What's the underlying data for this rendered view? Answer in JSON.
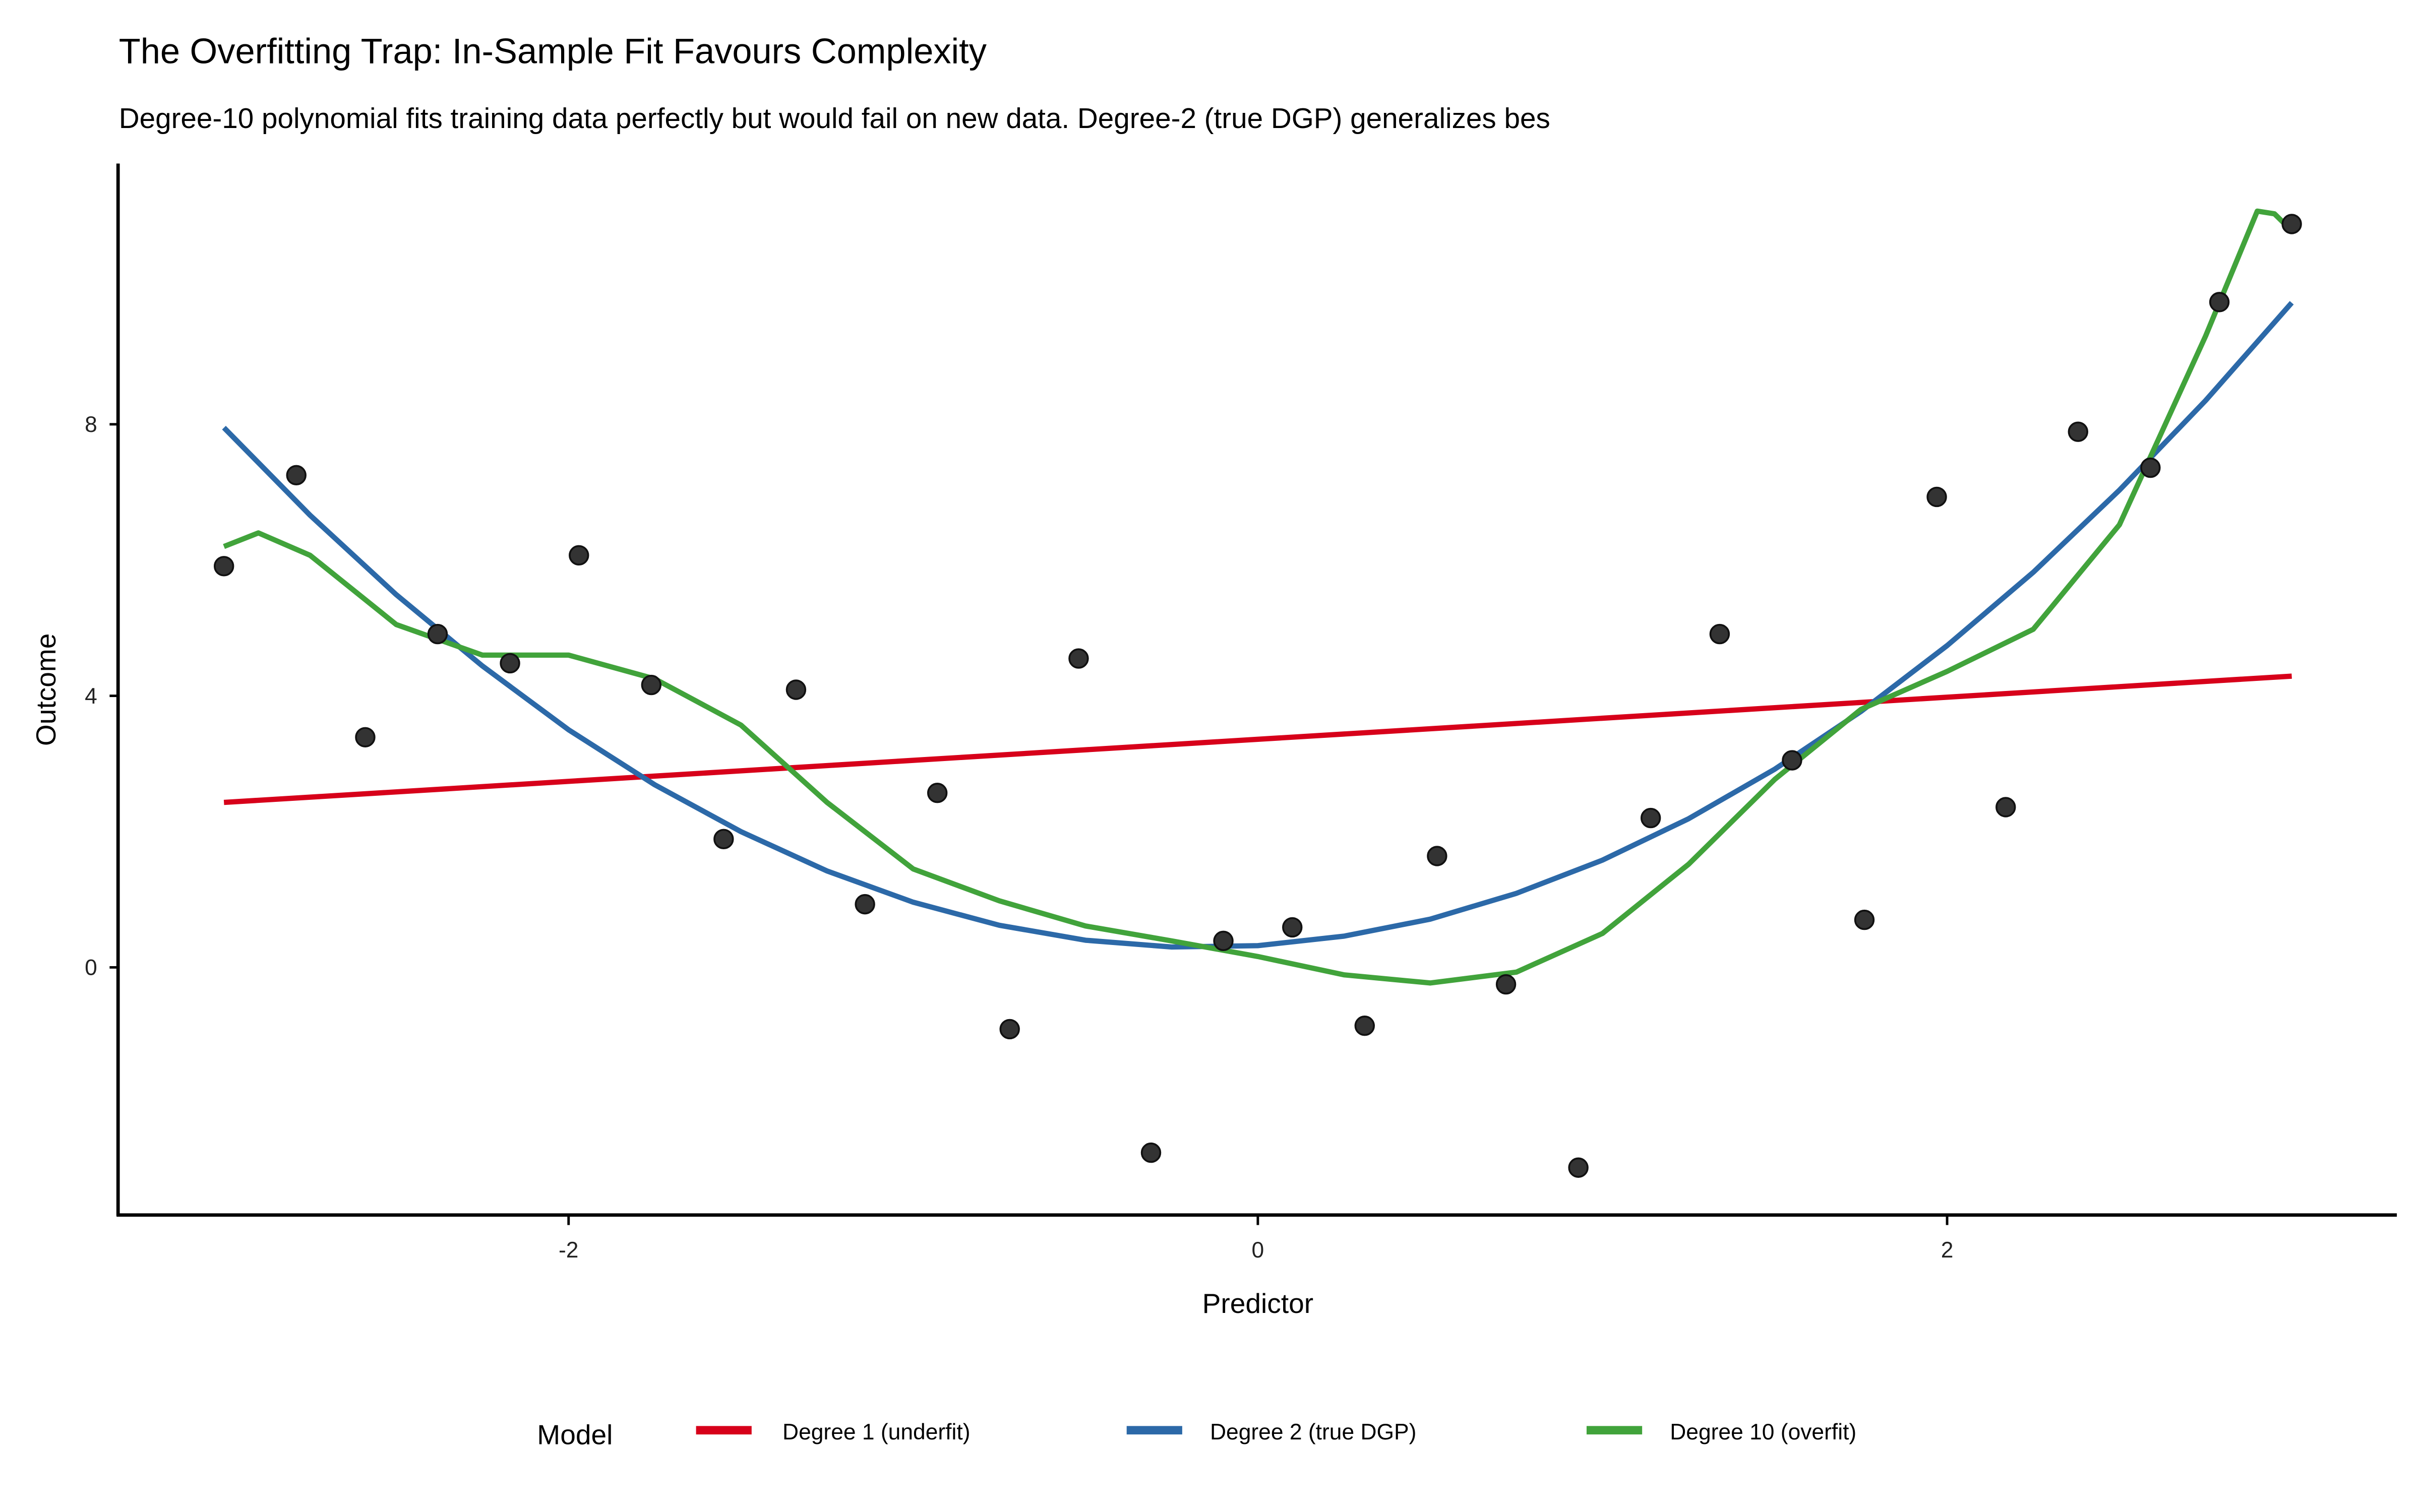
{
  "chart_data": {
    "type": "scatter",
    "title": "The Overfitting Trap: In-Sample Fit Favours Complexity",
    "subtitle": "Degree-10 polynomial fits training data perfectly but would fail on new data. Degree-2 (true DGP) generalizes bes",
    "xlabel": "Predictor",
    "ylabel": "Outcome",
    "xlim": [
      -3.3,
      3.3
    ],
    "ylim": [
      -3.65,
      11.65
    ],
    "x_ticks": [
      -2,
      0,
      2
    ],
    "x_tick_labels": [
      "-2",
      "0",
      "2"
    ],
    "y_ticks": [
      0,
      4,
      8
    ],
    "y_tick_labels": [
      "0",
      "4",
      "8"
    ],
    "grid": false,
    "points": {
      "color": "#333333",
      "x": [
        -3.0,
        -2.79,
        -2.59,
        -2.38,
        -2.17,
        -1.97,
        -1.76,
        -1.55,
        -1.34,
        -1.14,
        -0.93,
        -0.72,
        -0.52,
        -0.31,
        -0.1,
        0.1,
        0.31,
        0.52,
        0.72,
        0.93,
        1.14,
        1.34,
        1.55,
        1.76,
        1.97,
        2.17,
        2.38,
        2.59,
        2.79,
        3.0
      ],
      "y": [
        5.91,
        7.25,
        3.39,
        4.91,
        4.48,
        6.07,
        4.16,
        1.89,
        4.09,
        0.93,
        2.57,
        -0.91,
        4.55,
        -2.73,
        0.39,
        0.59,
        -0.86,
        1.64,
        -0.25,
        -2.95,
        2.2,
        4.91,
        3.05,
        0.7,
        6.93,
        2.36,
        7.89,
        7.36,
        9.8,
        10.95
      ]
    },
    "series": [
      {
        "name": "Degree 1 (underfit)",
        "color": "#D7001A",
        "x": [
          -3.0,
          3.0
        ],
        "y": [
          2.43,
          4.29
        ]
      },
      {
        "name": "Degree 2 (true DGP)",
        "color": "#2C69A8",
        "x": [
          -3.0,
          -2.75,
          -2.5,
          -2.25,
          -2.0,
          -1.75,
          -1.5,
          -1.25,
          -1.0,
          -0.75,
          -0.5,
          -0.25,
          0.0,
          0.25,
          0.5,
          0.75,
          1.0,
          1.25,
          1.5,
          1.75,
          2.0,
          2.25,
          2.5,
          2.75,
          3.0
        ],
        "y": [
          7.95,
          6.66,
          5.49,
          4.44,
          3.5,
          2.69,
          2.0,
          1.42,
          0.96,
          0.62,
          0.4,
          0.3,
          0.32,
          0.46,
          0.71,
          1.09,
          1.58,
          2.19,
          2.92,
          3.77,
          4.74,
          5.82,
          7.03,
          8.35,
          9.79
        ]
      },
      {
        "name": "Degree 10 (overfit)",
        "color": "#41A33B",
        "x": [
          -3.0,
          -2.9,
          -2.75,
          -2.5,
          -2.25,
          -2.0,
          -1.75,
          -1.5,
          -1.25,
          -1.0,
          -0.75,
          -0.5,
          -0.25,
          0.0,
          0.25,
          0.5,
          0.75,
          1.0,
          1.25,
          1.5,
          1.75,
          2.0,
          2.25,
          2.5,
          2.75,
          2.9,
          2.95,
          3.0
        ],
        "y": [
          6.2,
          6.4,
          6.07,
          5.05,
          4.6,
          4.6,
          4.25,
          3.57,
          2.43,
          1.45,
          0.98,
          0.61,
          0.39,
          0.16,
          -0.11,
          -0.23,
          -0.07,
          0.5,
          1.52,
          2.77,
          3.8,
          4.36,
          4.98,
          6.52,
          9.3,
          11.14,
          11.1,
          10.85
        ]
      }
    ],
    "legend": {
      "title": "Model",
      "position": "bottom",
      "entries": [
        "Degree 1 (underfit)",
        "Degree 2 (true DGP)",
        "Degree 10 (overfit)"
      ]
    }
  }
}
